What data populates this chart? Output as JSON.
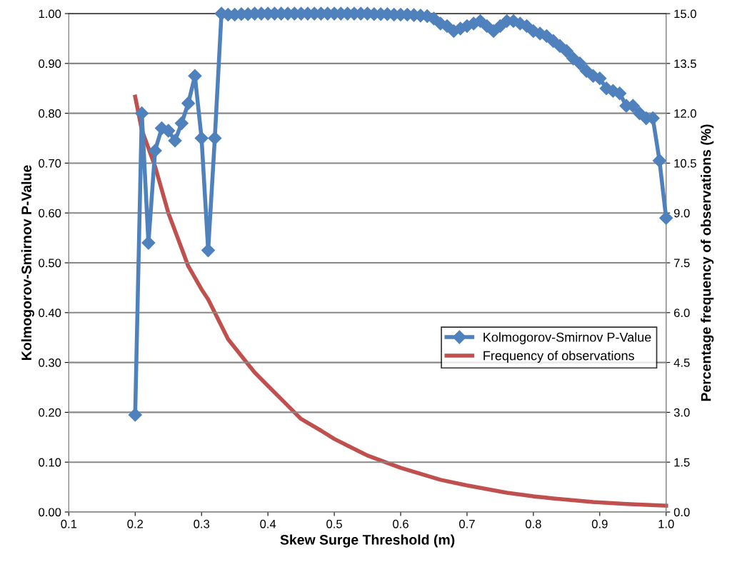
{
  "chart_data": {
    "type": "line",
    "xlabel": "Skew Surge Threshold (m)",
    "ylabel": "Kolmogorov-Smirnov P-Value",
    "y2label": "Percentage frequency of observations (%)",
    "xlim": [
      0.1,
      1.0
    ],
    "xticks": [
      {
        "value": 0.1,
        "label": "0.1"
      },
      {
        "value": 0.2,
        "label": "0.2"
      },
      {
        "value": 0.3,
        "label": "0.3"
      },
      {
        "value": 0.4,
        "label": "0.4"
      },
      {
        "value": 0.5,
        "label": "0.5"
      },
      {
        "value": 0.6,
        "label": "0.6"
      },
      {
        "value": 0.7,
        "label": "0.7"
      },
      {
        "value": 0.8,
        "label": "0.8"
      },
      {
        "value": 0.9,
        "label": "0.9"
      },
      {
        "value": 1.0,
        "label": "1.0"
      }
    ],
    "ylim": [
      0,
      1
    ],
    "yticks": [
      {
        "value": 0,
        "label": "0.00"
      },
      {
        "value": 0.1,
        "label": "0.10"
      },
      {
        "value": 0.2,
        "label": "0.20"
      },
      {
        "value": 0.3,
        "label": "0.30"
      },
      {
        "value": 0.4,
        "label": "0.40"
      },
      {
        "value": 0.5,
        "label": "0.50"
      },
      {
        "value": 0.6,
        "label": "0.60"
      },
      {
        "value": 0.7,
        "label": "0.70"
      },
      {
        "value": 0.8,
        "label": "0.80"
      },
      {
        "value": 0.9,
        "label": "0.90"
      },
      {
        "value": 1.0,
        "label": "1.00"
      }
    ],
    "y2lim": [
      0,
      15
    ],
    "y2ticks": [
      {
        "value": 0,
        "label": "0.0"
      },
      {
        "value": 1.5,
        "label": "1.5"
      },
      {
        "value": 3,
        "label": "3.0"
      },
      {
        "value": 4.5,
        "label": "4.5"
      },
      {
        "value": 6,
        "label": "6.0"
      },
      {
        "value": 7.5,
        "label": "7.5"
      },
      {
        "value": 9,
        "label": "9.0"
      },
      {
        "value": 10.5,
        "label": "10.5"
      },
      {
        "value": 12,
        "label": "12.0"
      },
      {
        "value": 13.5,
        "label": "13.5"
      },
      {
        "value": 15,
        "label": "15.0"
      }
    ],
    "grid": "y",
    "legend": "right",
    "series": [
      {
        "name": "Kolmogorov-Smirnov P-Value",
        "color": "#4f81bd",
        "marker": "diamond",
        "x": [
          0.2,
          0.21,
          0.22,
          0.23,
          0.24,
          0.25,
          0.26,
          0.27,
          0.28,
          0.29,
          0.3,
          0.31,
          0.32,
          0.33,
          0.34,
          0.35,
          0.36,
          0.37,
          0.38,
          0.39,
          0.4,
          0.41,
          0.42,
          0.43,
          0.44,
          0.45,
          0.46,
          0.47,
          0.48,
          0.49,
          0.5,
          0.51,
          0.52,
          0.53,
          0.54,
          0.55,
          0.56,
          0.57,
          0.58,
          0.59,
          0.6,
          0.61,
          0.62,
          0.63,
          0.64,
          0.65,
          0.66,
          0.67,
          0.68,
          0.69,
          0.7,
          0.71,
          0.72,
          0.73,
          0.74,
          0.75,
          0.76,
          0.77,
          0.78,
          0.79,
          0.8,
          0.81,
          0.82,
          0.83,
          0.84,
          0.85,
          0.86,
          0.87,
          0.88,
          0.89,
          0.9,
          0.91,
          0.92,
          0.93,
          0.94,
          0.95,
          0.96,
          0.97,
          0.98,
          0.99,
          1.0
        ],
        "values": [
          0.195,
          0.8,
          0.54,
          0.725,
          0.77,
          0.765,
          0.745,
          0.78,
          0.82,
          0.875,
          0.75,
          0.525,
          0.75,
          1.0,
          0.998,
          0.998,
          0.999,
          0.999,
          1.0,
          1.0,
          1.0,
          1.0,
          1.0,
          1.0,
          1.0,
          1.0,
          1.0,
          1.0,
          1.0,
          1.0,
          1.0,
          1.0,
          1.0,
          1.0,
          1.0,
          1.0,
          0.999,
          0.999,
          0.999,
          0.998,
          0.998,
          0.998,
          0.997,
          0.996,
          0.995,
          0.99,
          0.98,
          0.975,
          0.965,
          0.97,
          0.975,
          0.98,
          0.985,
          0.975,
          0.965,
          0.975,
          0.985,
          0.985,
          0.98,
          0.975,
          0.965,
          0.96,
          0.955,
          0.945,
          0.935,
          0.925,
          0.91,
          0.9,
          0.885,
          0.875,
          0.87,
          0.85,
          0.845,
          0.84,
          0.815,
          0.815,
          0.8,
          0.79,
          0.79,
          0.705,
          0.59
        ]
      },
      {
        "name": "Frequency of observations",
        "color": "#c0504d",
        "marker": "none",
        "axis": "y2",
        "x": [
          0.2,
          0.21,
          0.23,
          0.25,
          0.28,
          0.3,
          0.31,
          0.34,
          0.37,
          0.38,
          0.4,
          0.43,
          0.45,
          0.48,
          0.5,
          0.52,
          0.55,
          0.6,
          0.66,
          0.7,
          0.76,
          0.8,
          0.83,
          0.89,
          0.94,
          1.0
        ],
        "values": [
          12.5,
          11.5,
          10.4,
          9.0,
          7.4,
          6.7,
          6.4,
          5.2,
          4.45,
          4.2,
          3.8,
          3.2,
          2.8,
          2.45,
          2.2,
          2.0,
          1.7,
          1.33,
          0.97,
          0.8,
          0.58,
          0.47,
          0.41,
          0.3,
          0.24,
          0.19
        ]
      }
    ]
  }
}
